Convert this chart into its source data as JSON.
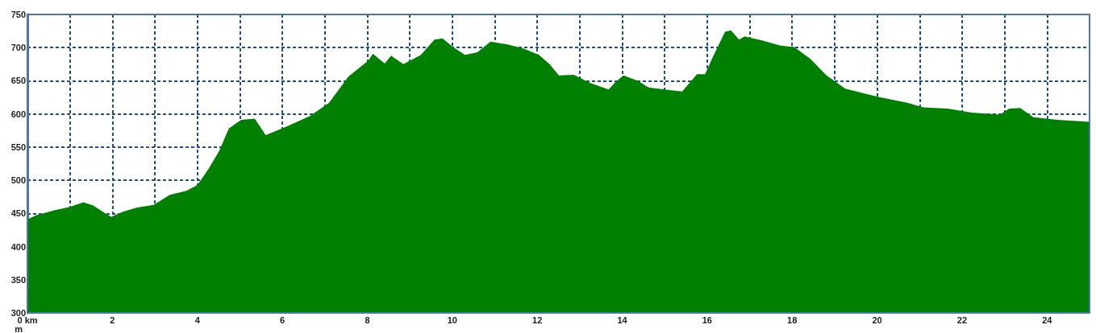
{
  "chart_data": {
    "type": "area",
    "ylabel": "m",
    "color": "#008000",
    "marker": "none",
    "grid": true,
    "x": [
      0,
      0.2,
      0.65,
      1.0,
      1.32,
      1.55,
      1.84,
      1.97,
      2.26,
      2.58,
      2.97,
      3.35,
      3.74,
      4.0,
      4.26,
      4.52,
      4.74,
      5.03,
      5.35,
      5.61,
      6.06,
      6.65,
      7.1,
      7.55,
      8.03,
      8.13,
      8.41,
      8.56,
      8.85,
      9.26,
      9.58,
      9.77,
      10.02,
      10.3,
      10.59,
      10.9,
      11.28,
      11.66,
      12.04,
      12.29,
      12.51,
      12.86,
      13.24,
      13.68,
      13.84,
      14.03,
      14.37,
      14.62,
      15.0,
      15.41,
      15.76,
      15.95,
      16.14,
      16.42,
      16.56,
      16.75,
      16.88,
      17.29,
      17.73,
      18.05,
      18.43,
      18.81,
      19.25,
      20.01,
      20.71,
      21.09,
      21.66,
      22.23,
      22.89,
      23.11,
      23.37,
      23.68,
      24.25,
      25.0
    ],
    "values": [
      441,
      447,
      455,
      460,
      467,
      462,
      450,
      445,
      453,
      459,
      463,
      478,
      484,
      493,
      517,
      545,
      578,
      591,
      593,
      568,
      580,
      597,
      617,
      656,
      681,
      691,
      676,
      688,
      675,
      689,
      712,
      714,
      701,
      689,
      693,
      709,
      705,
      699,
      689,
      675,
      658,
      659,
      647,
      637,
      648,
      658,
      650,
      640,
      637,
      634,
      660,
      660,
      687,
      724,
      726,
      712,
      717,
      711,
      703,
      701,
      683,
      658,
      638,
      626,
      617,
      610,
      608,
      602,
      599,
      608,
      609,
      595,
      591,
      588
    ],
    "xlim": [
      0,
      25
    ],
    "xticks": [
      {
        "value": 0,
        "label": "0 km"
      },
      {
        "value": 1,
        "label": null
      },
      2,
      {
        "value": 3,
        "label": null
      },
      4,
      {
        "value": 5,
        "label": null
      },
      6,
      {
        "value": 7,
        "label": null
      },
      8,
      {
        "value": 9,
        "label": null
      },
      10,
      {
        "value": 11,
        "label": null
      },
      12,
      {
        "value": 13,
        "label": null
      },
      14,
      {
        "value": 15,
        "label": null
      },
      16,
      {
        "value": 17,
        "label": null
      },
      18,
      {
        "value": 19,
        "label": null
      },
      20,
      {
        "value": 21,
        "label": null
      },
      22,
      {
        "value": 23,
        "label": null
      },
      24
    ],
    "ylim": [
      300,
      750
    ],
    "yticks": [
      300,
      350,
      400,
      450,
      500,
      550,
      600,
      650,
      700,
      750
    ]
  }
}
